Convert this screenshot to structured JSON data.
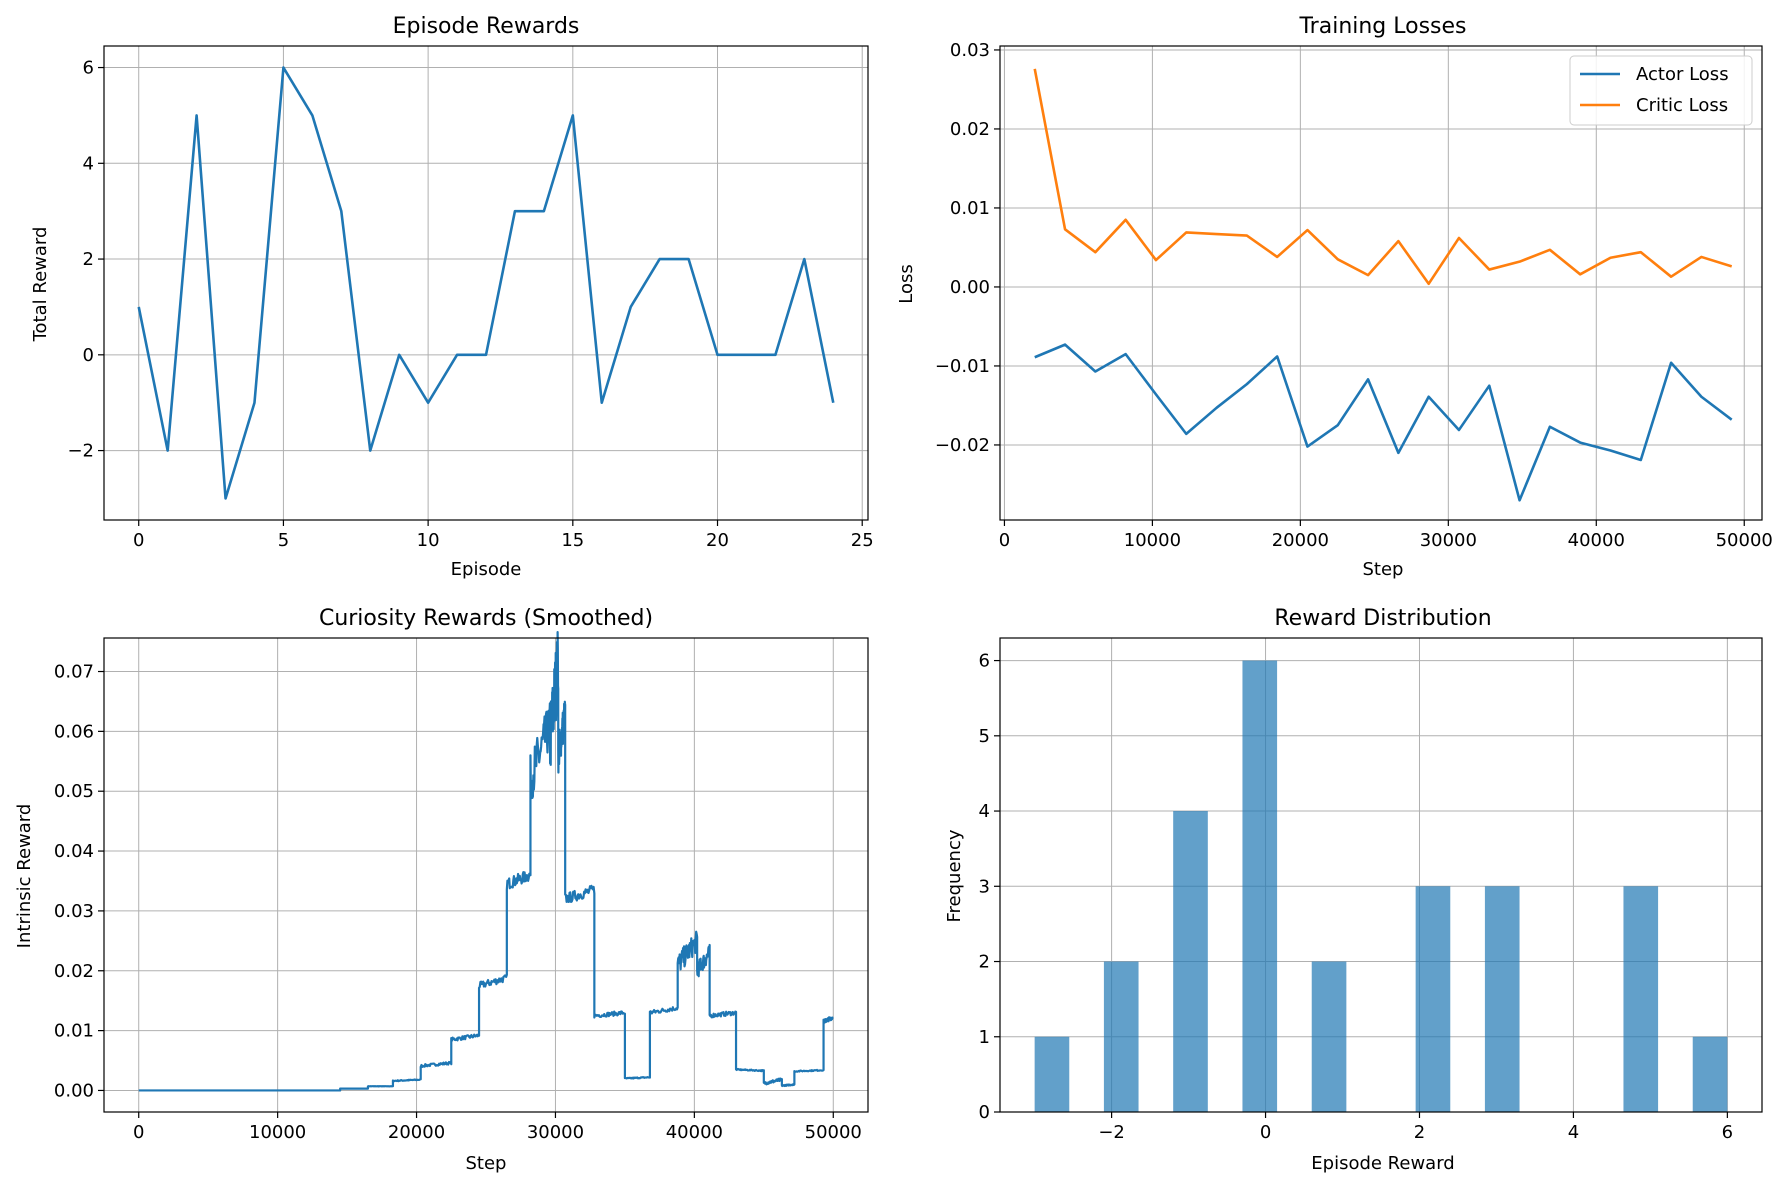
{
  "colors": {
    "series1": "#1f77b4",
    "series2": "#ff7f0e",
    "hist": "#1f77b4"
  },
  "chart_data": [
    {
      "id": "rewards",
      "type": "line",
      "title": "Episode Rewards",
      "xlabel": "Episode",
      "ylabel": "Total Reward",
      "xlim": [
        -1.2,
        25.2
      ],
      "ylim": [
        -3.45,
        6.45
      ],
      "xticks": [
        0,
        5,
        10,
        15,
        20,
        25
      ],
      "yticks": [
        -2,
        0,
        2,
        4,
        6
      ],
      "grid": true,
      "series": [
        {
          "x": [
            0,
            1,
            2,
            3,
            4,
            5,
            6,
            7,
            8,
            9,
            10,
            11,
            12,
            13,
            14,
            15,
            16,
            17,
            18,
            19,
            20,
            21,
            22,
            23,
            24
          ],
          "values": [
            1,
            -2,
            5,
            -3,
            -1,
            6,
            5,
            3,
            -2,
            0,
            -1,
            0,
            0,
            3,
            3,
            5,
            -1,
            1,
            2,
            2,
            0,
            0,
            0,
            2,
            -1
          ]
        }
      ]
    },
    {
      "id": "losses",
      "type": "line",
      "title": "Training Losses",
      "xlabel": "Step",
      "ylabel": "Loss",
      "xlim": [
        -300,
        51200
      ],
      "ylim": [
        -0.0295,
        0.0305
      ],
      "xticks": [
        0,
        10000,
        20000,
        30000,
        40000,
        50000
      ],
      "yticks": [
        -0.02,
        -0.01,
        0.0,
        0.01,
        0.02,
        0.03
      ],
      "ytick_labels": [
        "−0.02",
        "−0.01",
        "0.00",
        "0.01",
        "0.02",
        "0.03"
      ],
      "grid": true,
      "legend_position": "top-right",
      "series": [
        {
          "name": "Actor Loss",
          "x": [
            2048,
            4096,
            6144,
            8192,
            10240,
            12288,
            14336,
            16384,
            18432,
            20480,
            22528,
            24576,
            26624,
            28672,
            30720,
            32768,
            34816,
            36864,
            38912,
            40960,
            43008,
            45056,
            47104,
            49152
          ],
          "values": [
            -0.0089,
            -0.0073,
            -0.0107,
            -0.0085,
            -0.0136,
            -0.0186,
            -0.0153,
            -0.0123,
            -0.0088,
            -0.0202,
            -0.0175,
            -0.0117,
            -0.021,
            -0.0139,
            -0.0181,
            -0.0125,
            -0.027,
            -0.0177,
            -0.0197,
            -0.0207,
            -0.0219,
            -0.0096,
            -0.0139,
            -0.0168
          ]
        },
        {
          "name": "Critic Loss",
          "x": [
            2048,
            4096,
            6144,
            8192,
            10240,
            12288,
            14336,
            16384,
            18432,
            20480,
            22528,
            24576,
            26624,
            28672,
            30720,
            32768,
            34816,
            36864,
            38912,
            40960,
            43008,
            45056,
            47104,
            49152
          ],
          "values": [
            0.0276,
            0.0073,
            0.0044,
            0.0085,
            0.0034,
            0.0069,
            0.0067,
            0.0065,
            0.0038,
            0.0072,
            0.0035,
            0.0015,
            0.0058,
            0.0004,
            0.0062,
            0.0022,
            0.0032,
            0.0047,
            0.0016,
            0.0037,
            0.0044,
            0.0013,
            0.0038,
            0.0026
          ]
        }
      ]
    },
    {
      "id": "curiosity",
      "type": "line",
      "title": "Curiosity Rewards (Smoothed)",
      "xlabel": "Step",
      "ylabel": "Intrinsic Reward",
      "xlim": [
        -2500,
        52500
      ],
      "ylim": [
        -0.0036,
        0.0756
      ],
      "xticks": [
        0,
        10000,
        20000,
        30000,
        40000,
        50000
      ],
      "yticks": [
        0.0,
        0.01,
        0.02,
        0.03,
        0.04,
        0.05,
        0.06,
        0.07
      ],
      "ytick_labels": [
        "0.00",
        "0.01",
        "0.02",
        "0.03",
        "0.04",
        "0.05",
        "0.06",
        "0.07"
      ],
      "grid": true,
      "segments": [
        [
          0,
          14500,
          0.0,
          0.0
        ],
        [
          14500,
          16500,
          0.0003,
          0.0003
        ],
        [
          16500,
          18300,
          0.0007,
          0.0007
        ],
        [
          18300,
          20300,
          0.0016,
          0.0018
        ],
        [
          20300,
          22500,
          0.0041,
          0.0046
        ],
        [
          22500,
          24500,
          0.0085,
          0.0092
        ],
        [
          24500,
          26500,
          0.0175,
          0.0188
        ],
        [
          26500,
          28200,
          0.0345,
          0.036
        ],
        [
          28200,
          29600,
          0.052,
          0.061
        ],
        [
          29600,
          30200,
          0.058,
          0.072
        ],
        [
          30200,
          30700,
          0.056,
          0.063
        ],
        [
          30700,
          32800,
          0.032,
          0.0335
        ],
        [
          32800,
          35000,
          0.0125,
          0.013
        ],
        [
          35000,
          36800,
          0.002,
          0.0022
        ],
        [
          36800,
          38800,
          0.013,
          0.0138
        ],
        [
          38800,
          40200,
          0.021,
          0.025
        ],
        [
          40200,
          41100,
          0.02,
          0.023
        ],
        [
          41100,
          43000,
          0.0125,
          0.013
        ],
        [
          43000,
          45000,
          0.0035,
          0.0033
        ],
        [
          45000,
          46300,
          0.0012,
          0.0018
        ],
        [
          46300,
          47200,
          0.0008,
          0.001
        ],
        [
          47200,
          49300,
          0.0032,
          0.0034
        ],
        [
          49300,
          49950,
          0.0115,
          0.0122
        ]
      ]
    },
    {
      "id": "distribution",
      "type": "bar",
      "title": "Reward Distribution",
      "xlabel": "Episode Reward",
      "ylabel": "Frequency",
      "xlim": [
        -3.45,
        6.45
      ],
      "ylim": [
        0,
        6.3
      ],
      "xticks": [
        -2,
        0,
        2,
        4,
        6
      ],
      "yticks": [
        0,
        1,
        2,
        3,
        4,
        5,
        6
      ],
      "grid": true,
      "bin_edges": [
        -3.0,
        -2.55,
        -2.1,
        -1.65,
        -1.2,
        -0.75,
        -0.3,
        0.15,
        0.6,
        1.05,
        1.5,
        1.95,
        2.4,
        2.85,
        3.3,
        3.75,
        4.2,
        4.65,
        5.1,
        5.55,
        6.0
      ],
      "values": [
        1,
        0,
        2,
        0,
        4,
        0,
        6,
        0,
        2,
        0,
        0,
        3,
        0,
        3,
        0,
        0,
        0,
        3,
        0,
        1
      ]
    }
  ]
}
